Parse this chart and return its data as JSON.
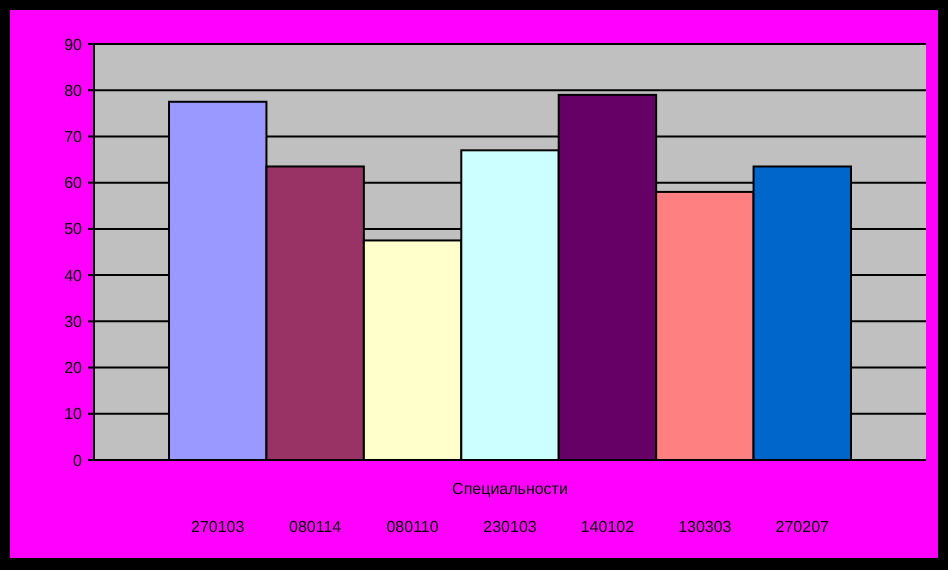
{
  "chart_data": {
    "type": "bar",
    "xlabel": "Специальности",
    "categories": [
      "270103",
      "080114",
      "080110",
      "230103",
      "140102",
      "130303",
      "270207"
    ],
    "values": [
      77.5,
      63.5,
      47.5,
      67,
      79,
      58,
      63.5
    ],
    "colors": [
      "#9999ff",
      "#993366",
      "#ffffcc",
      "#ccffff",
      "#660066",
      "#ff8080",
      "#0066cc"
    ],
    "ylim": [
      0,
      90
    ],
    "yticks": [
      0,
      10,
      20,
      30,
      40,
      50,
      60,
      70,
      80,
      90
    ],
    "grid": "y"
  }
}
